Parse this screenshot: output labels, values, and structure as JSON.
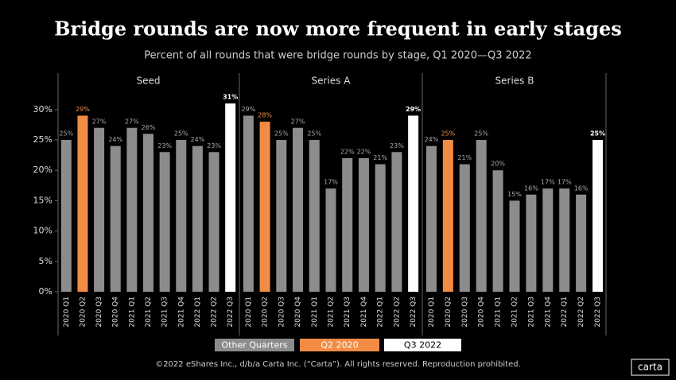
{
  "title": "Bridge rounds are now more frequent in early stages",
  "subtitle": "Percent of all rounds that were bridge rounds by stage, Q1 2020—Q3 2022",
  "footer": "©2022 eShares Inc., d/b/a Carta Inc. (“Carta”). All rights reserved. Reproduction prohibited.",
  "logo": "carta",
  "legend": [
    {
      "name": "Other Quarters",
      "color": "#8c8c8c"
    },
    {
      "name": "Q2 2020",
      "color": "#f28c45"
    },
    {
      "name": "Q3 2022",
      "color": "#ffffff"
    }
  ],
  "chart_data": [
    {
      "type": "bar",
      "title": "Seed",
      "categories": [
        "2020 Q1",
        "2020 Q2",
        "2020 Q3",
        "2020 Q4",
        "2021 Q1",
        "2021 Q2",
        "2021 Q3",
        "2021 Q4",
        "2022 Q1",
        "2022 Q2",
        "2022 Q3"
      ],
      "values": [
        25,
        29,
        27,
        24,
        27,
        26,
        23,
        25,
        24,
        23,
        31
      ],
      "value_labels": [
        "25%",
        "29%",
        "27%",
        "24%",
        "27%",
        "26%",
        "23%",
        "25%",
        "24%",
        "23%",
        "31%"
      ],
      "colors": [
        "#8c8c8c",
        "#f28c45",
        "#8c8c8c",
        "#8c8c8c",
        "#8c8c8c",
        "#8c8c8c",
        "#8c8c8c",
        "#8c8c8c",
        "#8c8c8c",
        "#8c8c8c",
        "#ffffff"
      ],
      "ylim": [
        0,
        36
      ],
      "yticks": [
        {
          "value": 0,
          "label": "0%"
        },
        {
          "value": 5,
          "label": "5%"
        },
        {
          "value": 10,
          "label": "10%"
        },
        {
          "value": 15,
          "label": "15%"
        },
        {
          "value": 20,
          "label": "20%"
        },
        {
          "value": 25,
          "label": "25%"
        },
        {
          "value": 30,
          "label": "30%"
        }
      ]
    },
    {
      "type": "bar",
      "title": "Series A",
      "categories": [
        "2020 Q1",
        "2020 Q2",
        "2020 Q3",
        "2020 Q4",
        "2021 Q1",
        "2021 Q2",
        "2021 Q3",
        "2021 Q4",
        "2022 Q1",
        "2022 Q2",
        "2022 Q3"
      ],
      "values": [
        29,
        28,
        25,
        27,
        25,
        17,
        22,
        22,
        21,
        23,
        29
      ],
      "value_labels": [
        "29%",
        "28%",
        "25%",
        "27%",
        "25%",
        "17%",
        "22%",
        "22%",
        "21%",
        "23%",
        "29%"
      ],
      "colors": [
        "#8c8c8c",
        "#f28c45",
        "#8c8c8c",
        "#8c8c8c",
        "#8c8c8c",
        "#8c8c8c",
        "#8c8c8c",
        "#8c8c8c",
        "#8c8c8c",
        "#8c8c8c",
        "#ffffff"
      ],
      "ylim": [
        0,
        36
      ]
    },
    {
      "type": "bar",
      "title": "Series B",
      "categories": [
        "2020 Q1",
        "2020 Q2",
        "2020 Q3",
        "2020 Q4",
        "2021 Q1",
        "2021 Q2",
        "2021 Q3",
        "2021 Q4",
        "2022 Q1",
        "2022 Q2",
        "2022 Q3"
      ],
      "values": [
        24,
        25,
        21,
        25,
        20,
        15,
        16,
        17,
        17,
        16,
        25
      ],
      "value_labels": [
        "24%",
        "25%",
        "21%",
        "25%",
        "20%",
        "15%",
        "16%",
        "17%",
        "17%",
        "16%",
        "25%"
      ],
      "colors": [
        "#8c8c8c",
        "#f28c45",
        "#8c8c8c",
        "#8c8c8c",
        "#8c8c8c",
        "#8c8c8c",
        "#8c8c8c",
        "#8c8c8c",
        "#8c8c8c",
        "#8c8c8c",
        "#ffffff"
      ],
      "ylim": [
        0,
        36
      ]
    }
  ]
}
